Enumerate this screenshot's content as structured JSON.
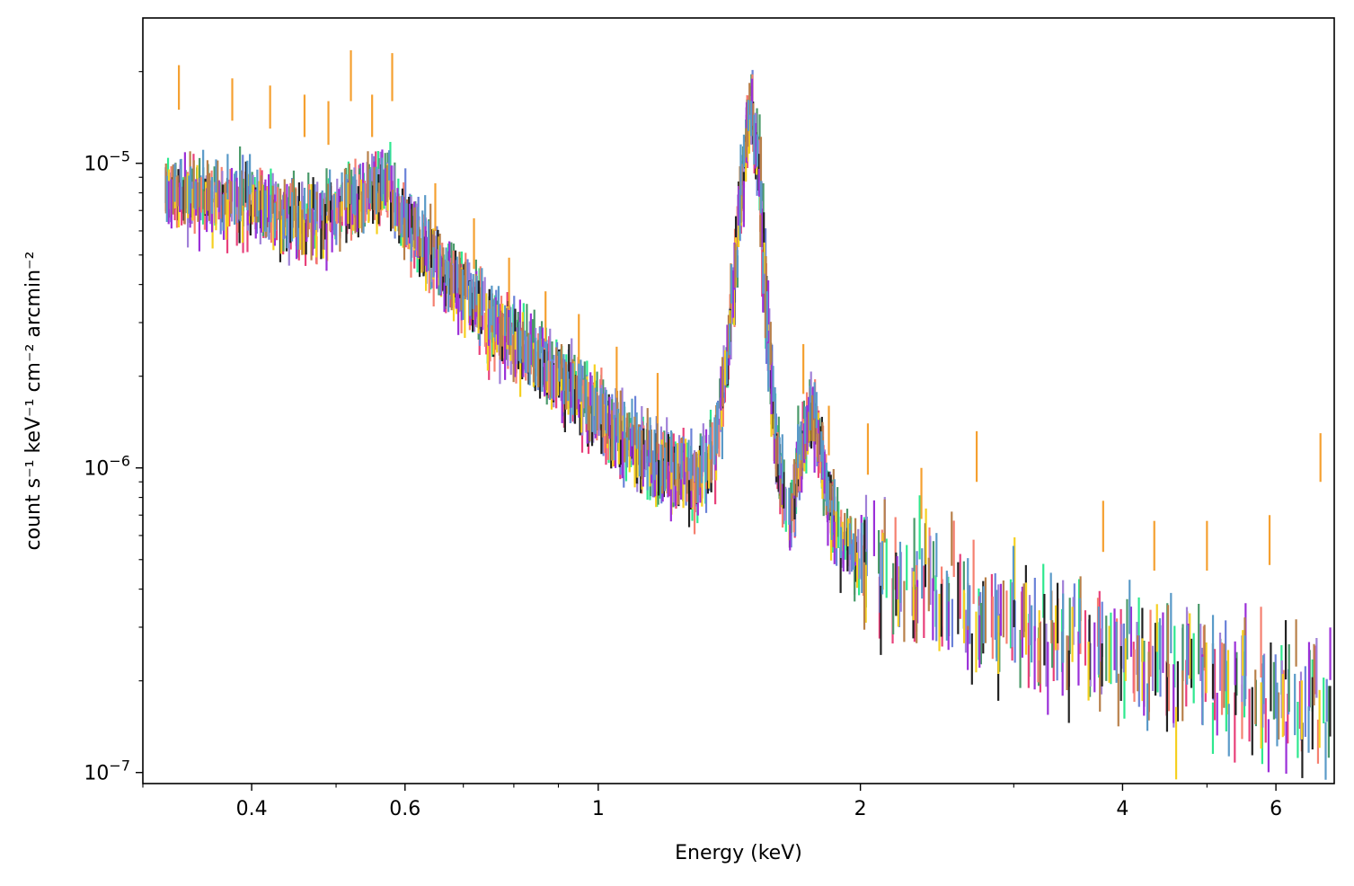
{
  "chart_data": {
    "type": "scatter",
    "title": "",
    "xlabel": "Energy (keV)",
    "ylabel": "count s⁻¹ keV⁻¹ cm⁻² arcmin⁻²",
    "xscale": "log",
    "yscale": "log",
    "xlim": [
      0.3,
      7.0
    ],
    "ylim": [
      9.2e-08,
      3e-05
    ],
    "grid": false,
    "legend": "none",
    "marker": "vertical error bars",
    "x_ticks": [
      {
        "value": 0.4,
        "label": "0.4"
      },
      {
        "value": 0.6,
        "label": "0.6"
      },
      {
        "value": 1,
        "label": "1"
      },
      {
        "value": 2,
        "label": "2"
      },
      {
        "value": 4,
        "label": "4"
      },
      {
        "value": 6,
        "label": "6"
      }
    ],
    "y_ticks": [
      {
        "value": 1e-05,
        "base": "10",
        "exp": "−5"
      },
      {
        "value": 1e-06,
        "base": "10",
        "exp": "−6"
      },
      {
        "value": 1e-07,
        "base": "10",
        "exp": "−7"
      }
    ],
    "series_colors": [
      "#f5a030",
      "#2ee88f",
      "#e8407a",
      "#6a82d8",
      "#4a9a6a",
      "#f58070",
      "#a080d8",
      "#222222",
      "#f5d020",
      "#9b30d8",
      "#b8804a",
      "#5a9ac8"
    ],
    "reference_series": {
      "color": "#f5a030",
      "bars": [
        [
          0.33,
          1.5e-05,
          2.1e-05
        ],
        [
          0.38,
          1.38e-05,
          1.9e-05
        ],
        [
          0.42,
          1.3e-05,
          1.8e-05
        ],
        [
          0.46,
          1.22e-05,
          1.68e-05
        ],
        [
          0.49,
          1.15e-05,
          1.6e-05
        ],
        [
          0.52,
          1.6e-05,
          2.35e-05
        ],
        [
          0.55,
          1.22e-05,
          1.68e-05
        ],
        [
          0.58,
          1.6e-05,
          2.3e-05
        ],
        [
          0.65,
          6e-06,
          8.6e-06
        ],
        [
          0.72,
          4.5e-06,
          6.6e-06
        ],
        [
          0.79,
          3.3e-06,
          4.9e-06
        ],
        [
          0.87,
          2.6e-06,
          3.8e-06
        ],
        [
          0.95,
          2.2e-06,
          3.2e-06
        ],
        [
          1.05,
          1.7e-06,
          2.5e-06
        ],
        [
          1.17,
          1.4e-06,
          2.05e-06
        ],
        [
          1.72,
          1.75e-06,
          2.55e-06
        ],
        [
          1.84,
          1.1e-06,
          1.6e-06
        ],
        [
          2.04,
          9.5e-07,
          1.4e-06
        ],
        [
          2.35,
          6.8e-07,
          1e-06
        ],
        [
          2.72,
          9e-07,
          1.32e-06
        ],
        [
          3.8,
          5.3e-07,
          7.8e-07
        ],
        [
          4.35,
          4.6e-07,
          6.7e-07
        ],
        [
          5.0,
          4.6e-07,
          6.7e-07
        ],
        [
          5.9,
          4.8e-07,
          7e-07
        ],
        [
          6.75,
          9e-07,
          1.3e-06
        ]
      ]
    },
    "spectrum_profile": [
      [
        0.32,
        8e-06
      ],
      [
        0.4,
        7.3e-06
      ],
      [
        0.47,
        6.2e-06
      ],
      [
        0.53,
        7.6e-06
      ],
      [
        0.57,
        8.8e-06
      ],
      [
        0.6,
        6.3e-06
      ],
      [
        0.66,
        4.5e-06
      ],
      [
        0.75,
        3e-06
      ],
      [
        0.85,
        2.3e-06
      ],
      [
        1.0,
        1.5e-06
      ],
      [
        1.15,
        1.05e-06
      ],
      [
        1.3,
        9e-07
      ],
      [
        1.37,
        1.2e-06
      ],
      [
        1.42,
        3e-06
      ],
      [
        1.48,
        1.3e-05
      ],
      [
        1.5,
        1.45e-05
      ],
      [
        1.53,
        1e-05
      ],
      [
        1.56,
        3.2e-06
      ],
      [
        1.6,
        1.2e-06
      ],
      [
        1.65,
        6.2e-07
      ],
      [
        1.7,
        1e-06
      ],
      [
        1.76,
        1.6e-06
      ],
      [
        1.82,
        9e-07
      ],
      [
        1.9,
        5.8e-07
      ],
      [
        2.2,
        4.4e-07
      ],
      [
        3.0,
        3e-07
      ],
      [
        4.0,
        2.4e-07
      ],
      [
        5.0,
        2e-07
      ],
      [
        6.0,
        1.8e-07
      ],
      [
        7.0,
        1.8e-07
      ]
    ]
  }
}
